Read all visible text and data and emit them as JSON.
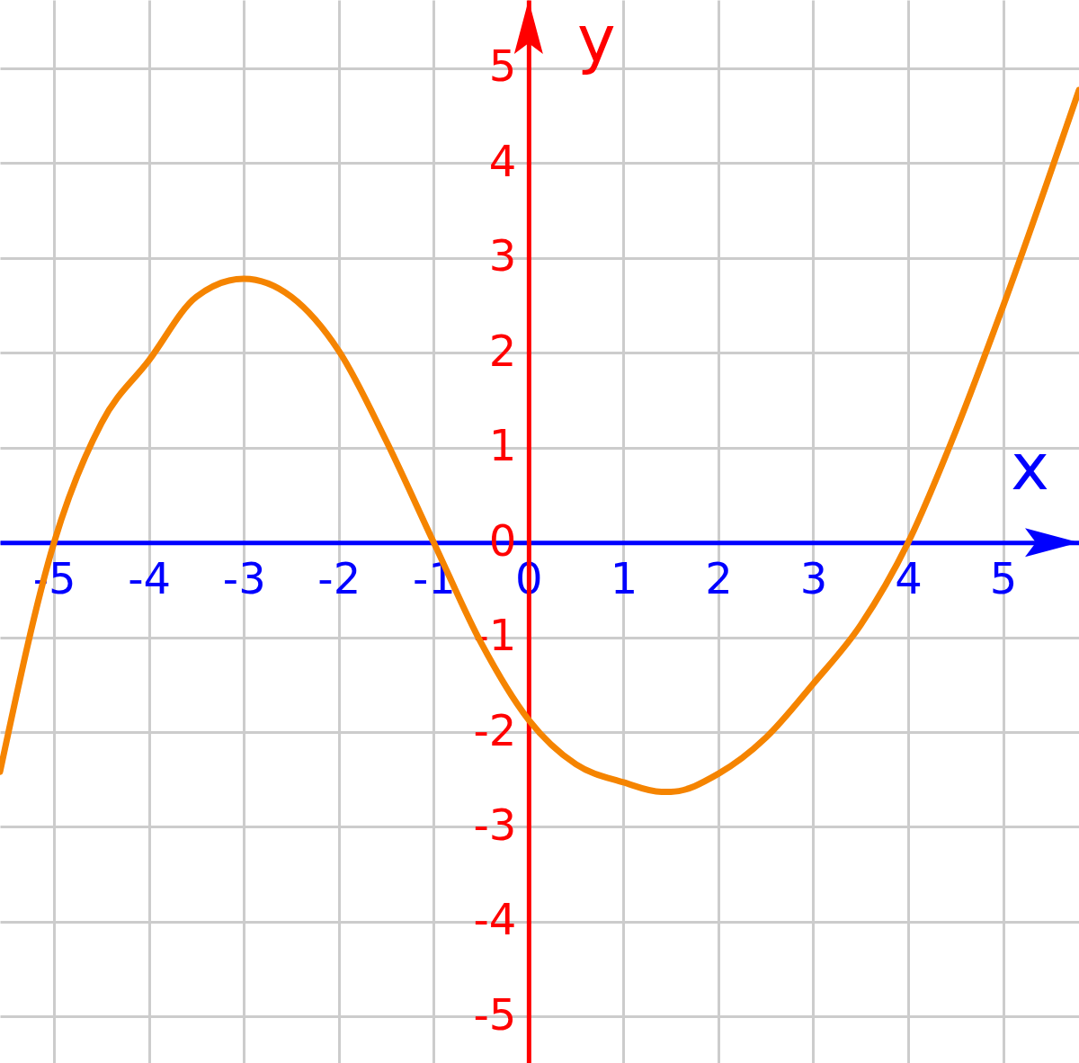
{
  "chart_data": {
    "type": "line",
    "xlabel": "x",
    "ylabel": "y",
    "x": [
      -5.57,
      -5,
      -4.5,
      -4,
      -3.5,
      -3,
      -2.5,
      -2,
      -1.5,
      -1,
      -0.5,
      0,
      0.5,
      1,
      1.4,
      1.5,
      2,
      2.5,
      3,
      3.5,
      4,
      4.5,
      5,
      5.8
    ],
    "series": [
      {
        "color": "#f58400",
        "values": [
          -2.42,
          0,
          1.26,
          1.92,
          2.59,
          2.78,
          2.59,
          2.02,
          1.07,
          0,
          -1.06,
          -1.87,
          -2.34,
          -2.53,
          -2.63,
          -2.63,
          -2.44,
          -2.06,
          -1.49,
          -0.87,
          0,
          1.17,
          2.49,
          4.77
        ]
      }
    ],
    "xlim": [
      -5.57,
      5.8
    ],
    "ylim": [
      -5.49,
      5.72
    ],
    "xticks": [
      -5,
      -4,
      -3,
      -2,
      -1,
      0,
      1,
      2,
      3,
      4,
      5
    ],
    "yticks": [
      -5,
      -4,
      -3,
      -2,
      -1,
      0,
      1,
      2,
      3,
      4,
      5
    ],
    "grid": true
  }
}
